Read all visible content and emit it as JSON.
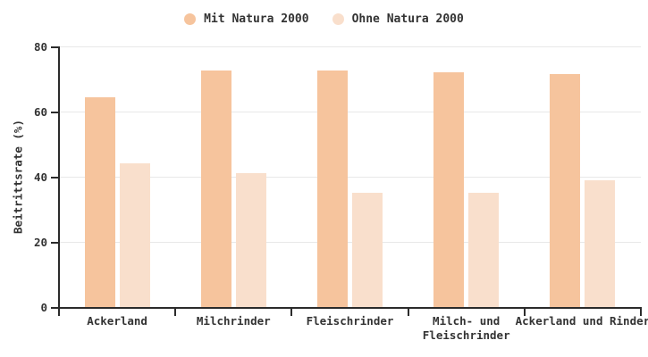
{
  "legend": {
    "items": [
      {
        "label": "Mit Natura 2000",
        "color": "#f6c49d"
      },
      {
        "label": "Ohne Natura 2000",
        "color": "#f9dfcc"
      }
    ]
  },
  "chart_data": {
    "type": "bar",
    "title": "",
    "xlabel": "",
    "ylabel": "Beitrittsrate (%)",
    "ylim": [
      0,
      80
    ],
    "yticks": [
      0,
      20,
      40,
      60,
      80
    ],
    "grid": true,
    "legend_position": "top-center",
    "categories": [
      "Ackerland",
      "Milchrinder",
      "Fleischrinder",
      "Milch- und\nFleischrinder",
      "Ackerland und Rinder"
    ],
    "series": [
      {
        "name": "Mit Natura 2000",
        "color": "#f6c49d",
        "values": [
          64.5,
          72.5,
          72.5,
          72,
          71.5
        ]
      },
      {
        "name": "Ohne Natura 2000",
        "color": "#f9dfcc",
        "values": [
          44,
          41,
          35,
          35,
          39
        ]
      }
    ]
  },
  "colors": {
    "axis": "#2b2b2b",
    "grid": "#e8e8e8",
    "text": "#333333",
    "background": "#ffffff"
  }
}
